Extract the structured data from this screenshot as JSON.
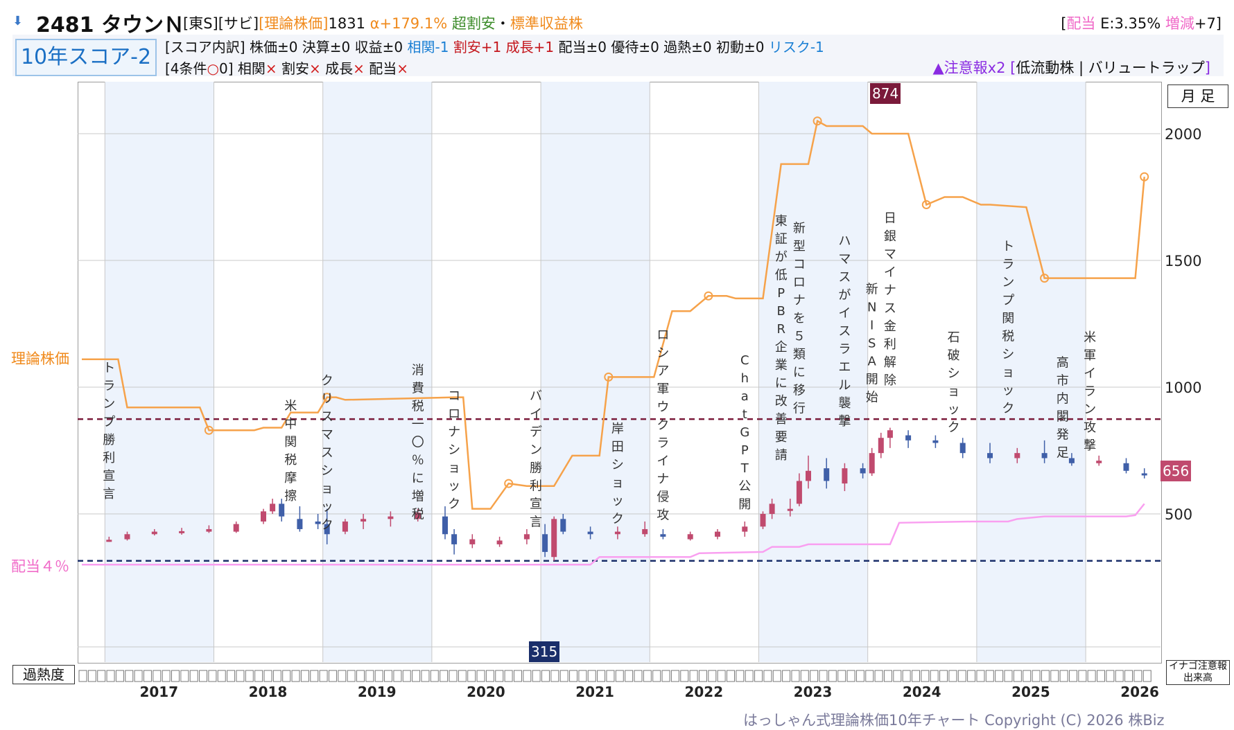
{
  "header": {
    "title": "2481 タウンＮ",
    "market": "[東S]",
    "sector": "[サビ]",
    "theory_label": "[理論株価]",
    "theory_value": "1831",
    "alpha": "α+179.1%",
    "judgement_1": "超割安",
    "judgement_sep": "・",
    "judgement_2": "標準収益株",
    "dividend_open": "[",
    "dividend_label": "配当",
    "dividend_e": " E:3.35% ",
    "dividend_change_label": "増減",
    "dividend_change_value": "+7]"
  },
  "score": {
    "badge": "10年スコア-2",
    "breakdown_prefix": "[スコア内訳] 株価±0 決算±0 収益±0 ",
    "soukan": "相関-1",
    "wariyasu": "割安+1",
    "seichou": "成長+1",
    "rest": "配当±0 優待±0 過熱±0 初動±0 ",
    "risk": "リスク-1",
    "conditions_prefix": "[4条件",
    "conditions_circle": "○",
    "conditions_count": "0] ",
    "c1": "相関",
    "c2": "割安",
    "c3": "成長",
    "c4": "配当",
    "cross": "×",
    "warning_flag": "▲注意報x2",
    "warning_detail_open": " [",
    "warning_detail": "低流動株 | バリュートラップ",
    "warning_detail_close": "]"
  },
  "labels": {
    "theory_axis": "理論株価",
    "dividend_axis": "配当４％",
    "monthly": "月 足",
    "overheat": "過熱度",
    "inago_1": "イナゴ注意報",
    "inago_2": "出来高",
    "max_price": "874",
    "min_price": "315",
    "current_price": "656",
    "copyright": "はっしゃん式理論株価10年チャート Copyright (C) 2026 株Biz"
  },
  "colors": {
    "theory": "#f6a24a",
    "dividend_line": "#f99ff0",
    "up_candle": "#c04a6e",
    "down_candle": "#3f5fa8",
    "high_line": "#7a1a3a",
    "low_line": "#1a2e6a",
    "band": "#edf3fc"
  },
  "chart_data": {
    "type": "candlestick",
    "yticks": [
      500,
      1000,
      1500,
      2000
    ],
    "ylim": [
      0,
      2200
    ],
    "years": [
      "2017",
      "2018",
      "2019",
      "2020",
      "2021",
      "2022",
      "2023",
      "2024",
      "2025",
      "2026"
    ],
    "high_price": 874,
    "low_price": 315,
    "current_price": 656,
    "theory_price": [
      [
        "2016-10",
        1110
      ],
      [
        "2017-02",
        1110
      ],
      [
        "2017-03",
        920
      ],
      [
        "2017-11",
        920
      ],
      [
        "2017-12",
        830
      ],
      [
        "2018-05",
        830
      ],
      [
        "2018-06",
        840
      ],
      [
        "2018-08",
        840
      ],
      [
        "2018-09",
        900
      ],
      [
        "2018-12",
        900
      ],
      [
        "2019-01",
        960
      ],
      [
        "2019-02",
        960
      ],
      [
        "2019-03",
        950
      ],
      [
        "2020-03",
        960
      ],
      [
        "2020-04",
        960
      ],
      [
        "2020-05",
        520
      ],
      [
        "2020-07",
        520
      ],
      [
        "2020-09",
        620
      ],
      [
        "2020-11",
        610
      ],
      [
        "2021-02",
        610
      ],
      [
        "2021-04",
        730
      ],
      [
        "2021-07",
        730
      ],
      [
        "2021-08",
        1040
      ],
      [
        "2021-12",
        1040
      ],
      [
        "2022-01",
        1040
      ],
      [
        "2022-03",
        1300
      ],
      [
        "2022-05",
        1300
      ],
      [
        "2022-07",
        1360
      ],
      [
        "2022-09",
        1360
      ],
      [
        "2022-10",
        1350
      ],
      [
        "2023-01",
        1350
      ],
      [
        "2023-03",
        1880
      ],
      [
        "2023-06",
        1880
      ],
      [
        "2023-07",
        2050
      ],
      [
        "2023-08",
        2030
      ],
      [
        "2023-11",
        2030
      ],
      [
        "2023-12",
        2030
      ],
      [
        "2024-01",
        2000
      ],
      [
        "2024-05",
        2000
      ],
      [
        "2024-07",
        1720
      ],
      [
        "2024-09",
        1750
      ],
      [
        "2024-11",
        1750
      ],
      [
        "2025-01",
        1720
      ],
      [
        "2025-02",
        1720
      ],
      [
        "2025-06",
        1710
      ],
      [
        "2025-08",
        1430
      ],
      [
        "2025-10",
        1430
      ],
      [
        "2026-01",
        1430
      ],
      [
        "2026-06",
        1430
      ],
      [
        "2026-07",
        1830
      ]
    ],
    "dividend_4pct_price": [
      [
        "2016-10",
        300
      ],
      [
        "2021-06",
        300
      ],
      [
        "2021-07",
        330
      ],
      [
        "2022-05",
        330
      ],
      [
        "2022-06",
        345
      ],
      [
        "2023-01",
        350
      ],
      [
        "2023-02",
        370
      ],
      [
        "2023-05",
        370
      ],
      [
        "2023-06",
        380
      ],
      [
        "2024-03",
        380
      ],
      [
        "2024-04",
        465
      ],
      [
        "2024-12",
        470
      ],
      [
        "2025-04",
        470
      ],
      [
        "2025-05",
        480
      ],
      [
        "2025-08",
        490
      ],
      [
        "2026-05",
        490
      ],
      [
        "2026-06",
        495
      ],
      [
        "2026-07",
        540
      ]
    ],
    "monthly_ohlc_sample": [
      [
        "2016-12",
        0.0,
        0.0,
        0.0,
        0.0
      ],
      [
        "2017-01",
        395,
        410,
        390,
        398
      ],
      [
        "2017-03",
        400,
        430,
        395,
        420
      ],
      [
        "2017-06",
        420,
        440,
        415,
        430
      ],
      [
        "2017-09",
        425,
        445,
        418,
        432
      ],
      [
        "2017-12",
        430,
        455,
        425,
        440
      ],
      [
        "2018-03",
        430,
        470,
        425,
        460
      ],
      [
        "2018-06",
        470,
        520,
        460,
        510
      ],
      [
        "2018-07",
        510,
        560,
        500,
        540
      ],
      [
        "2018-08",
        540,
        560,
        470,
        490
      ],
      [
        "2018-10",
        480,
        530,
        430,
        440
      ],
      [
        "2018-12",
        470,
        500,
        440,
        460
      ],
      [
        "2019-01",
        460,
        520,
        380,
        420
      ],
      [
        "2019-03",
        430,
        480,
        420,
        470
      ],
      [
        "2019-05",
        470,
        500,
        440,
        480
      ],
      [
        "2019-08",
        480,
        510,
        450,
        490
      ],
      [
        "2019-11",
        480,
        520,
        470,
        505
      ],
      [
        "2020-02",
        490,
        530,
        400,
        420
      ],
      [
        "2020-03",
        420,
        440,
        340,
        380
      ],
      [
        "2020-05",
        380,
        420,
        365,
        400
      ],
      [
        "2020-08",
        380,
        410,
        370,
        395
      ],
      [
        "2020-11",
        400,
        440,
        380,
        420
      ],
      [
        "2021-01",
        420,
        460,
        330,
        350
      ],
      [
        "2021-02",
        330,
        490,
        315,
        480
      ],
      [
        "2021-03",
        480,
        500,
        420,
        430
      ],
      [
        "2021-06",
        430,
        450,
        400,
        420
      ],
      [
        "2021-09",
        420,
        450,
        400,
        430
      ],
      [
        "2021-12",
        420,
        470,
        410,
        440
      ],
      [
        "2022-02",
        420,
        440,
        400,
        410
      ],
      [
        "2022-05",
        400,
        430,
        395,
        420
      ],
      [
        "2022-08",
        410,
        440,
        400,
        430
      ],
      [
        "2022-11",
        430,
        470,
        410,
        450
      ],
      [
        "2023-01",
        450,
        510,
        440,
        500
      ],
      [
        "2023-02",
        500,
        560,
        480,
        540
      ],
      [
        "2023-04",
        520,
        560,
        490,
        520
      ],
      [
        "2023-05",
        540,
        660,
        530,
        630
      ],
      [
        "2023-06",
        630,
        730,
        600,
        670
      ],
      [
        "2023-08",
        680,
        720,
        600,
        630
      ],
      [
        "2023-10",
        620,
        700,
        590,
        680
      ],
      [
        "2023-12",
        680,
        700,
        640,
        660
      ],
      [
        "2024-01",
        660,
        760,
        650,
        740
      ],
      [
        "2024-02",
        740,
        820,
        720,
        800
      ],
      [
        "2024-03",
        800,
        840,
        760,
        830
      ],
      [
        "2024-05",
        810,
        830,
        760,
        790
      ],
      [
        "2024-08",
        790,
        810,
        760,
        780
      ],
      [
        "2024-11",
        780,
        800,
        720,
        740
      ],
      [
        "2025-02",
        740,
        780,
        700,
        720
      ],
      [
        "2025-05",
        720,
        760,
        700,
        740
      ],
      [
        "2025-08",
        740,
        790,
        700,
        720
      ],
      [
        "2025-11",
        720,
        740,
        690,
        700
      ],
      [
        "2026-02",
        700,
        730,
        690,
        710
      ],
      [
        "2026-05",
        700,
        720,
        660,
        670
      ],
      [
        "2026-07",
        660,
        680,
        640,
        656
      ]
    ],
    "events": [
      {
        "date": "2017-01",
        "label": "トランプ勝利宣言",
        "y": 1060
      },
      {
        "date": "2018-09",
        "label": "米中関税摩擦",
        "y": 910
      },
      {
        "date": "2019-01",
        "label": "クリスマスショック",
        "y": 1010
      },
      {
        "date": "2019-11",
        "label": "消費税一〇％に増税",
        "y": 1050
      },
      {
        "date": "2020-03",
        "label": "コロナショック",
        "y": 950
      },
      {
        "date": "2020-12",
        "label": "バイデン勝利宣言",
        "y": 950
      },
      {
        "date": "2021-09",
        "label": "岸田ショック",
        "y": 820
      },
      {
        "date": "2022-02",
        "label": "ロシア軍ウクライナ侵攻",
        "y": 1190
      },
      {
        "date": "2022-11",
        "label": "ChatGPT公開",
        "y": 1090
      },
      {
        "date": "2023-03",
        "label": "東証が低PBR企業に改善要請",
        "y": 1640
      },
      {
        "date": "2023-05",
        "label": "新型コロナを５類に移行",
        "y": 1610
      },
      {
        "date": "2023-10",
        "label": "ハマスがイスラエル襲撃",
        "y": 1560
      },
      {
        "date": "2024-01",
        "label": "新NISA開始",
        "y": 1370
      },
      {
        "date": "2024-03",
        "label": "日銀マイナス金利解除",
        "y": 1650
      },
      {
        "date": "2024-10",
        "label": "石破ショック",
        "y": 1180
      },
      {
        "date": "2025-04",
        "label": "トランプ関税ショック",
        "y": 1540
      },
      {
        "date": "2025-10",
        "label": "高市内閣発足",
        "y": 1080
      },
      {
        "date": "2026-01",
        "label": "米軍イラン攻撃",
        "y": 1180
      }
    ]
  }
}
